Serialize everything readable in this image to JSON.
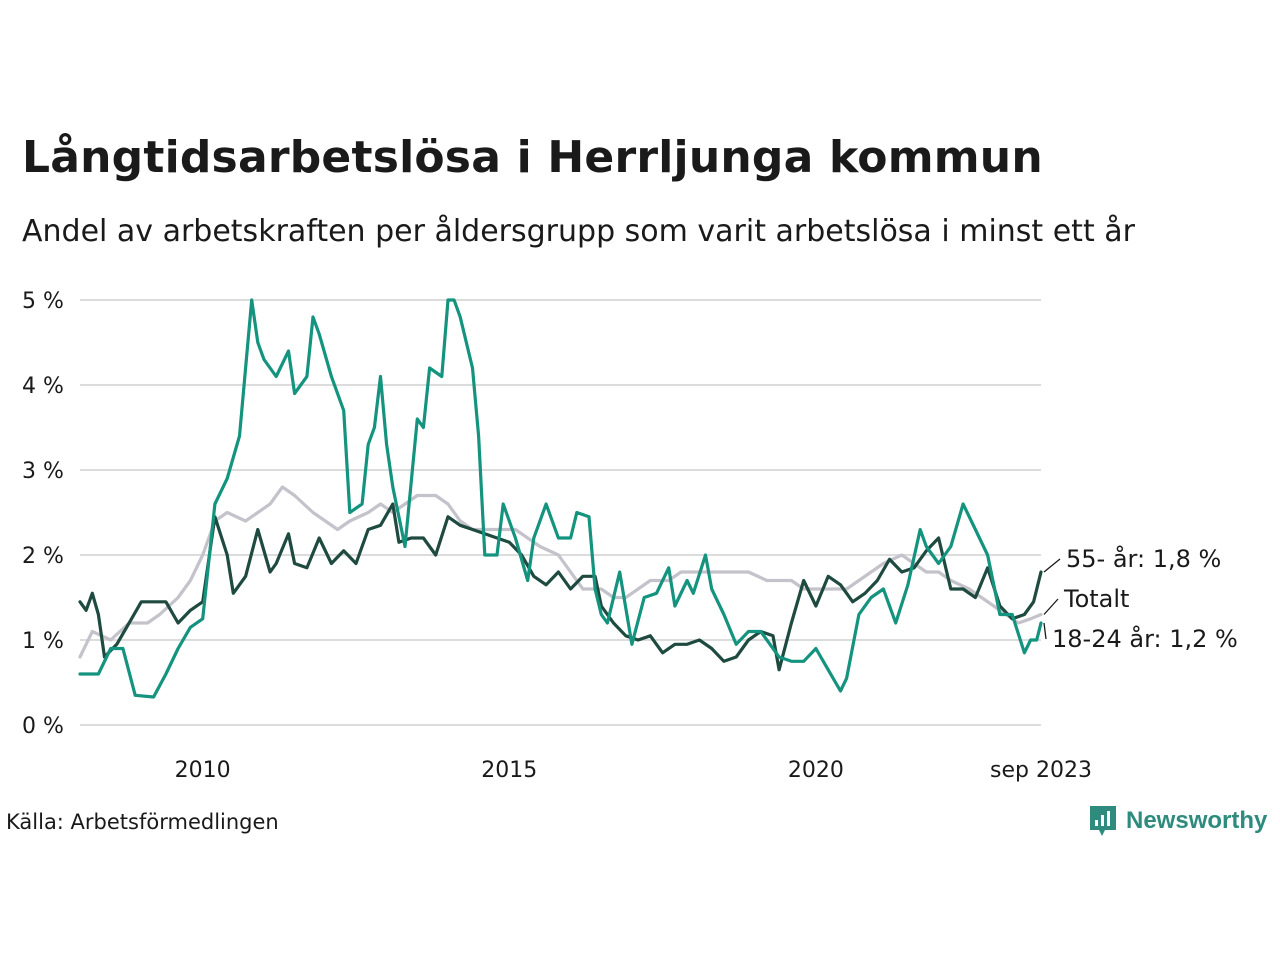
{
  "title": "Långtidsarbetslösa i Herrljunga kommun",
  "subtitle": "Andel av arbetskraften per åldersgrupp som varit arbetslösa i minst ett år",
  "source": "Källa: Arbetsförmedlingen",
  "brand": "Newsworthy",
  "colors": {
    "youth": "#14937f",
    "older": "#1e4a3f",
    "total": "#c4c2ca",
    "grid": "#dcdcdc",
    "brand": "#2e8b7e"
  },
  "chart_data": {
    "type": "line",
    "ylim": [
      0,
      5
    ],
    "yticks": [
      "0 %",
      "1 %",
      "2 %",
      "3 %",
      "4 %",
      "5 %"
    ],
    "xlim": [
      2008.0,
      2023.67
    ],
    "xticks": [
      {
        "value": 2010,
        "label": "2010"
      },
      {
        "value": 2015,
        "label": "2015"
      },
      {
        "value": 2020,
        "label": "2020"
      },
      {
        "value": 2023.67,
        "label": "sep 2023"
      }
    ],
    "series": [
      {
        "name": "Totalt",
        "end_label": "Totalt",
        "points": [
          [
            2008.0,
            0.8
          ],
          [
            2008.2,
            1.1
          ],
          [
            2008.5,
            1.0
          ],
          [
            2008.8,
            1.2
          ],
          [
            2009.1,
            1.2
          ],
          [
            2009.3,
            1.3
          ],
          [
            2009.6,
            1.5
          ],
          [
            2009.8,
            1.7
          ],
          [
            2010.0,
            2.0
          ],
          [
            2010.2,
            2.4
          ],
          [
            2010.4,
            2.5
          ],
          [
            2010.7,
            2.4
          ],
          [
            2010.9,
            2.5
          ],
          [
            2011.1,
            2.6
          ],
          [
            2011.3,
            2.8
          ],
          [
            2011.5,
            2.7
          ],
          [
            2011.8,
            2.5
          ],
          [
            2012.0,
            2.4
          ],
          [
            2012.2,
            2.3
          ],
          [
            2012.4,
            2.4
          ],
          [
            2012.7,
            2.5
          ],
          [
            2012.9,
            2.6
          ],
          [
            2013.1,
            2.5
          ],
          [
            2013.3,
            2.6
          ],
          [
            2013.5,
            2.7
          ],
          [
            2013.8,
            2.7
          ],
          [
            2014.0,
            2.6
          ],
          [
            2014.2,
            2.4
          ],
          [
            2014.4,
            2.3
          ],
          [
            2014.7,
            2.3
          ],
          [
            2014.9,
            2.3
          ],
          [
            2015.1,
            2.3
          ],
          [
            2015.3,
            2.2
          ],
          [
            2015.5,
            2.1
          ],
          [
            2015.8,
            2.0
          ],
          [
            2016.0,
            1.8
          ],
          [
            2016.2,
            1.6
          ],
          [
            2016.5,
            1.6
          ],
          [
            2016.7,
            1.5
          ],
          [
            2016.9,
            1.5
          ],
          [
            2017.1,
            1.6
          ],
          [
            2017.3,
            1.7
          ],
          [
            2017.6,
            1.7
          ],
          [
            2017.8,
            1.8
          ],
          [
            2018.0,
            1.8
          ],
          [
            2018.2,
            1.8
          ],
          [
            2018.5,
            1.8
          ],
          [
            2018.7,
            1.8
          ],
          [
            2018.9,
            1.8
          ],
          [
            2019.2,
            1.7
          ],
          [
            2019.4,
            1.7
          ],
          [
            2019.6,
            1.7
          ],
          [
            2019.8,
            1.6
          ],
          [
            2020.0,
            1.6
          ],
          [
            2020.3,
            1.6
          ],
          [
            2020.5,
            1.6
          ],
          [
            2020.7,
            1.7
          ],
          [
            2020.9,
            1.8
          ],
          [
            2021.1,
            1.9
          ],
          [
            2021.4,
            2.0
          ],
          [
            2021.6,
            1.9
          ],
          [
            2021.8,
            1.8
          ],
          [
            2022.0,
            1.8
          ],
          [
            2022.2,
            1.7
          ],
          [
            2022.5,
            1.6
          ],
          [
            2022.7,
            1.5
          ],
          [
            2022.9,
            1.4
          ],
          [
            2023.1,
            1.3
          ],
          [
            2023.3,
            1.2
          ],
          [
            2023.5,
            1.25
          ],
          [
            2023.67,
            1.3
          ]
        ]
      },
      {
        "name": "55- år",
        "end_label": "55- år: 1,8 %",
        "points": [
          [
            2008.0,
            1.45
          ],
          [
            2008.1,
            1.35
          ],
          [
            2008.2,
            1.55
          ],
          [
            2008.3,
            1.3
          ],
          [
            2008.4,
            0.8
          ],
          [
            2008.6,
            0.95
          ],
          [
            2008.8,
            1.2
          ],
          [
            2009.0,
            1.45
          ],
          [
            2009.2,
            1.45
          ],
          [
            2009.4,
            1.45
          ],
          [
            2009.6,
            1.2
          ],
          [
            2009.8,
            1.35
          ],
          [
            2010.0,
            1.45
          ],
          [
            2010.2,
            2.45
          ],
          [
            2010.4,
            2.0
          ],
          [
            2010.5,
            1.55
          ],
          [
            2010.7,
            1.75
          ],
          [
            2010.9,
            2.3
          ],
          [
            2011.1,
            1.8
          ],
          [
            2011.2,
            1.9
          ],
          [
            2011.4,
            2.25
          ],
          [
            2011.5,
            1.9
          ],
          [
            2011.7,
            1.85
          ],
          [
            2011.9,
            2.2
          ],
          [
            2012.1,
            1.9
          ],
          [
            2012.3,
            2.05
          ],
          [
            2012.5,
            1.9
          ],
          [
            2012.7,
            2.3
          ],
          [
            2012.9,
            2.35
          ],
          [
            2013.1,
            2.6
          ],
          [
            2013.2,
            2.15
          ],
          [
            2013.4,
            2.2
          ],
          [
            2013.6,
            2.2
          ],
          [
            2013.8,
            2.0
          ],
          [
            2014.0,
            2.45
          ],
          [
            2014.2,
            2.35
          ],
          [
            2014.4,
            2.3
          ],
          [
            2014.6,
            2.25
          ],
          [
            2014.8,
            2.2
          ],
          [
            2015.0,
            2.15
          ],
          [
            2015.2,
            2.0
          ],
          [
            2015.4,
            1.75
          ],
          [
            2015.6,
            1.65
          ],
          [
            2015.8,
            1.8
          ],
          [
            2016.0,
            1.6
          ],
          [
            2016.2,
            1.75
          ],
          [
            2016.4,
            1.75
          ],
          [
            2016.5,
            1.4
          ],
          [
            2016.7,
            1.2
          ],
          [
            2016.9,
            1.05
          ],
          [
            2017.1,
            1.0
          ],
          [
            2017.3,
            1.05
          ],
          [
            2017.5,
            0.85
          ],
          [
            2017.7,
            0.95
          ],
          [
            2017.9,
            0.95
          ],
          [
            2018.1,
            1.0
          ],
          [
            2018.3,
            0.9
          ],
          [
            2018.5,
            0.75
          ],
          [
            2018.7,
            0.8
          ],
          [
            2018.9,
            1.0
          ],
          [
            2019.1,
            1.1
          ],
          [
            2019.3,
            1.05
          ],
          [
            2019.4,
            0.65
          ],
          [
            2019.6,
            1.2
          ],
          [
            2019.8,
            1.7
          ],
          [
            2020.0,
            1.4
          ],
          [
            2020.2,
            1.75
          ],
          [
            2020.4,
            1.65
          ],
          [
            2020.6,
            1.45
          ],
          [
            2020.8,
            1.55
          ],
          [
            2021.0,
            1.7
          ],
          [
            2021.2,
            1.95
          ],
          [
            2021.4,
            1.8
          ],
          [
            2021.6,
            1.85
          ],
          [
            2021.8,
            2.05
          ],
          [
            2022.0,
            2.2
          ],
          [
            2022.2,
            1.6
          ],
          [
            2022.4,
            1.6
          ],
          [
            2022.6,
            1.5
          ],
          [
            2022.8,
            1.85
          ],
          [
            2023.0,
            1.4
          ],
          [
            2023.2,
            1.25
          ],
          [
            2023.4,
            1.3
          ],
          [
            2023.55,
            1.45
          ],
          [
            2023.67,
            1.8
          ]
        ]
      },
      {
        "name": "18-24 år",
        "end_label": "18-24 år: 1,2 %",
        "points": [
          [
            2008.0,
            0.6
          ],
          [
            2008.3,
            0.6
          ],
          [
            2008.5,
            0.9
          ],
          [
            2008.7,
            0.9
          ],
          [
            2008.9,
            0.35
          ],
          [
            2009.2,
            0.33
          ],
          [
            2009.4,
            0.6
          ],
          [
            2009.6,
            0.9
          ],
          [
            2009.8,
            1.15
          ],
          [
            2010.0,
            1.25
          ],
          [
            2010.2,
            2.6
          ],
          [
            2010.4,
            2.9
          ],
          [
            2010.6,
            3.4
          ],
          [
            2010.8,
            5.0
          ],
          [
            2010.9,
            4.5
          ],
          [
            2011.0,
            4.3
          ],
          [
            2011.2,
            4.1
          ],
          [
            2011.4,
            4.4
          ],
          [
            2011.5,
            3.9
          ],
          [
            2011.7,
            4.1
          ],
          [
            2011.8,
            4.8
          ],
          [
            2011.9,
            4.6
          ],
          [
            2012.1,
            4.1
          ],
          [
            2012.3,
            3.7
          ],
          [
            2012.4,
            2.5
          ],
          [
            2012.6,
            2.6
          ],
          [
            2012.7,
            3.3
          ],
          [
            2012.8,
            3.5
          ],
          [
            2012.9,
            4.1
          ],
          [
            2013.0,
            3.3
          ],
          [
            2013.1,
            2.8
          ],
          [
            2013.3,
            2.1
          ],
          [
            2013.5,
            3.6
          ],
          [
            2013.6,
            3.5
          ],
          [
            2013.7,
            4.2
          ],
          [
            2013.9,
            4.1
          ],
          [
            2014.0,
            5.0
          ],
          [
            2014.1,
            5.0
          ],
          [
            2014.2,
            4.8
          ],
          [
            2014.4,
            4.2
          ],
          [
            2014.5,
            3.4
          ],
          [
            2014.6,
            2.0
          ],
          [
            2014.8,
            2.0
          ],
          [
            2014.9,
            2.6
          ],
          [
            2015.1,
            2.2
          ],
          [
            2015.3,
            1.7
          ],
          [
            2015.4,
            2.2
          ],
          [
            2015.6,
            2.6
          ],
          [
            2015.8,
            2.2
          ],
          [
            2016.0,
            2.2
          ],
          [
            2016.1,
            2.5
          ],
          [
            2016.3,
            2.45
          ],
          [
            2016.4,
            1.6
          ],
          [
            2016.5,
            1.3
          ],
          [
            2016.6,
            1.2
          ],
          [
            2016.8,
            1.8
          ],
          [
            2017.0,
            0.95
          ],
          [
            2017.2,
            1.5
          ],
          [
            2017.4,
            1.55
          ],
          [
            2017.6,
            1.85
          ],
          [
            2017.7,
            1.4
          ],
          [
            2017.9,
            1.7
          ],
          [
            2018.0,
            1.55
          ],
          [
            2018.2,
            2.0
          ],
          [
            2018.3,
            1.6
          ],
          [
            2018.5,
            1.3
          ],
          [
            2018.7,
            0.95
          ],
          [
            2018.9,
            1.1
          ],
          [
            2019.1,
            1.1
          ],
          [
            2019.2,
            1.0
          ],
          [
            2019.4,
            0.8
          ],
          [
            2019.6,
            0.75
          ],
          [
            2019.8,
            0.75
          ],
          [
            2020.0,
            0.9
          ],
          [
            2020.2,
            0.65
          ],
          [
            2020.4,
            0.4
          ],
          [
            2020.5,
            0.55
          ],
          [
            2020.7,
            1.3
          ],
          [
            2020.9,
            1.5
          ],
          [
            2021.1,
            1.6
          ],
          [
            2021.3,
            1.2
          ],
          [
            2021.5,
            1.65
          ],
          [
            2021.7,
            2.3
          ],
          [
            2021.8,
            2.1
          ],
          [
            2022.0,
            1.9
          ],
          [
            2022.2,
            2.1
          ],
          [
            2022.4,
            2.6
          ],
          [
            2022.6,
            2.3
          ],
          [
            2022.8,
            2.0
          ],
          [
            2023.0,
            1.3
          ],
          [
            2023.2,
            1.3
          ],
          [
            2023.4,
            0.85
          ],
          [
            2023.5,
            1.0
          ],
          [
            2023.6,
            1.0
          ],
          [
            2023.67,
            1.2
          ]
        ]
      }
    ]
  }
}
